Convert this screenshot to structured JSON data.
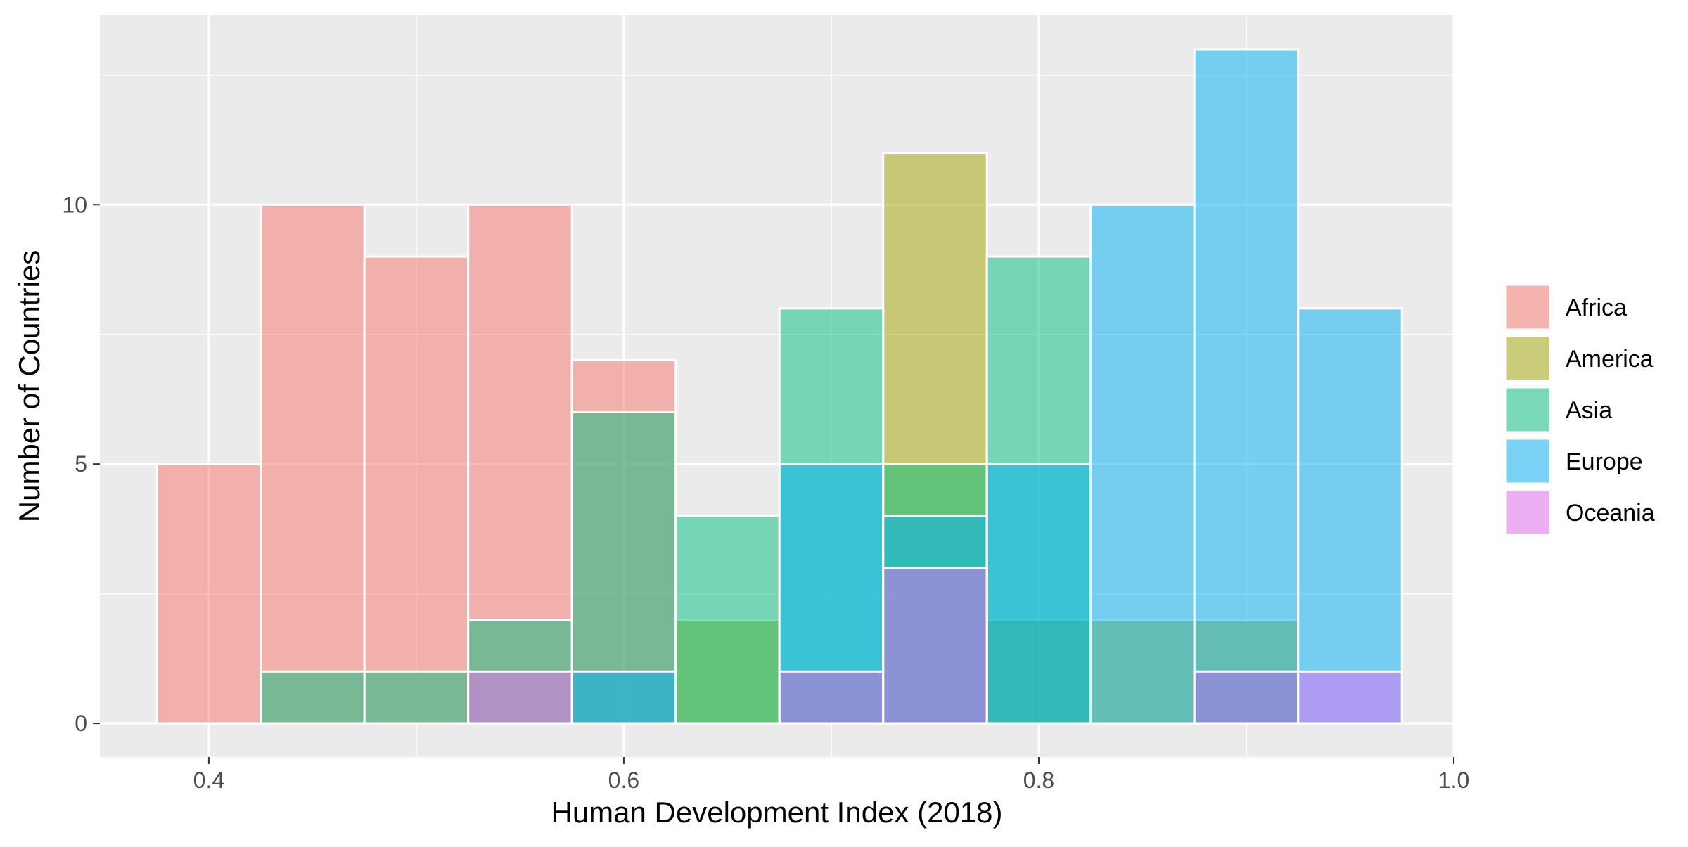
{
  "chart_data": {
    "type": "bar",
    "subtype": "overlapping-histogram",
    "title": "",
    "xlabel": "Human Development Index (2018)",
    "ylabel": "Number of Countries",
    "xlim": [
      0.3475,
      1.0
    ],
    "ylim": [
      -0.65,
      13.65
    ],
    "xticks": [
      0.4,
      0.6,
      0.8,
      1.0
    ],
    "xtick_labels": [
      "0.4",
      "0.6",
      "0.8",
      "1.0"
    ],
    "yticks": [
      0,
      5,
      10
    ],
    "ytick_labels": [
      "0",
      "5",
      "10"
    ],
    "grid": true,
    "legend_position": "right",
    "bin_width": 0.05,
    "bin_centers": [
      0.4,
      0.45,
      0.5,
      0.55,
      0.6,
      0.65,
      0.7,
      0.75,
      0.8,
      0.85,
      0.9,
      0.95
    ],
    "series": [
      {
        "name": "Africa",
        "color": "#F8766D",
        "values": [
          5,
          10,
          9,
          10,
          7,
          0,
          0,
          0,
          0,
          0,
          0,
          0
        ]
      },
      {
        "name": "America",
        "color": "#A3A500",
        "values": [
          0,
          0,
          0,
          0,
          0,
          2,
          1,
          11,
          2,
          2,
          2,
          0
        ]
      },
      {
        "name": "Asia",
        "color": "#00BF7D",
        "values": [
          0,
          1,
          1,
          2,
          6,
          4,
          8,
          5,
          9,
          0,
          1,
          0
        ]
      },
      {
        "name": "Europe",
        "color": "#00B0F6",
        "values": [
          0,
          0,
          0,
          0,
          1,
          0,
          5,
          4,
          5,
          10,
          13,
          8
        ]
      },
      {
        "name": "Oceania",
        "color": "#E76BF3",
        "values": [
          0,
          0,
          0,
          1,
          0,
          0,
          1,
          3,
          0,
          0,
          1,
          1
        ]
      }
    ]
  }
}
